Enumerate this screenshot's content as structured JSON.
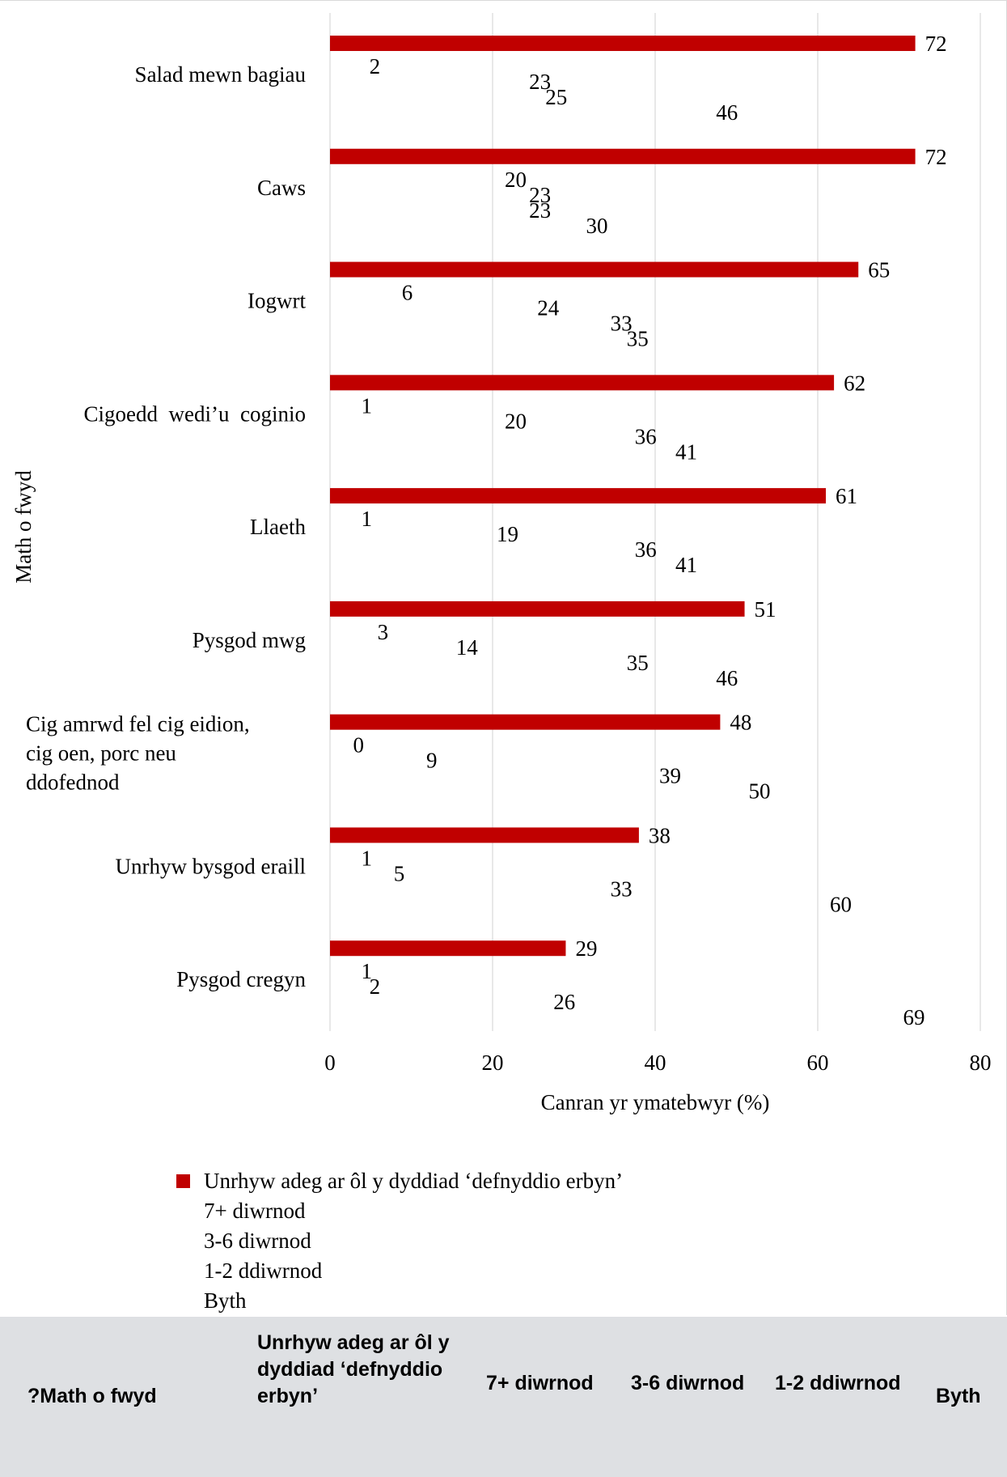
{
  "chart_data": {
    "type": "bar",
    "orientation": "horizontal",
    "categories": [
      "Salad mewn bagiau",
      "Caws",
      "Iogwrt",
      "Cigoedd  wedi’u  coginio",
      "Llaeth",
      "Pysgod mwg",
      "Cig amrwd fel cig eidion, cig oen, porc neu ddofednod",
      "Unrhyw bysgod eraill",
      "Pysgod cregyn"
    ],
    "category_lines": [
      [
        "Salad mewn bagiau"
      ],
      [
        "Caws"
      ],
      [
        "Iogwrt"
      ],
      [
        "Cigoedd  wedi’u  coginio"
      ],
      [
        "Llaeth"
      ],
      [
        "Pysgod mwg"
      ],
      [
        "Cig amrwd fel cig eidion,",
        "cig oen, porc neu",
        "ddofednod"
      ],
      [
        "Unrhyw bysgod eraill"
      ],
      [
        "Pysgod cregyn"
      ]
    ],
    "series": [
      {
        "name": "Unrhyw adeg ar ôl y dyddiad ‘defnyddio erbyn’",
        "values": [
          72,
          72,
          65,
          62,
          61,
          51,
          48,
          38,
          29
        ],
        "color": "#c00000",
        "drawn": true
      },
      {
        "name": "7+ diwrnod",
        "values": [
          2,
          20,
          6,
          1,
          1,
          3,
          0,
          1,
          1
        ],
        "drawn": false
      },
      {
        "name": "3-6 diwrnod",
        "values": [
          23,
          23,
          24,
          20,
          19,
          14,
          9,
          5,
          2
        ],
        "drawn": false
      },
      {
        "name": "1-2 ddiwrnod",
        "values": [
          25,
          23,
          33,
          36,
          36,
          35,
          39,
          33,
          26
        ],
        "drawn": false
      },
      {
        "name": "Byth",
        "values": [
          46,
          30,
          35,
          41,
          41,
          46,
          50,
          60,
          69
        ],
        "drawn": false
      }
    ],
    "xlabel": "Canran yr ymatebwyr (%)",
    "ylabel": "Math o fwyd",
    "xlim": [
      0,
      80
    ],
    "xticks": [
      0,
      20,
      40,
      60,
      80
    ],
    "grid": true,
    "legend_position": "bottom"
  },
  "table_header": {
    "columns": [
      "?Math o fwyd",
      "Unrhyw adeg ar ôl y dyddiad ‘defnyddio erbyn’",
      "7+ diwrnod",
      "3-6 diwrnod",
      "1-2 ddiwrnod",
      "Byth"
    ]
  }
}
